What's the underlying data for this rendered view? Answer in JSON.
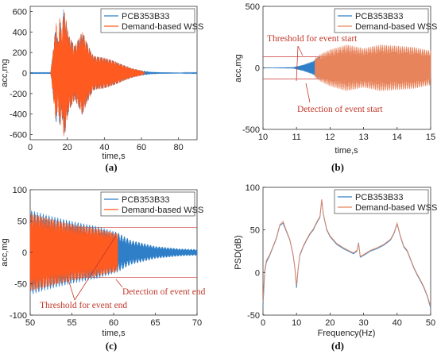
{
  "chart_data": [
    {
      "type": "line",
      "panel_label": "(a)",
      "xlabel": "time,s",
      "ylabel": "acc,mg",
      "xlim": [
        0,
        90
      ],
      "ylim": [
        -650,
        650
      ],
      "xticks": [
        0,
        20,
        40,
        60,
        80
      ],
      "yticks": [
        -600,
        -400,
        -200,
        0,
        200,
        400,
        600
      ],
      "grid": false,
      "legend": "top-right",
      "series": [
        {
          "name": "PCB353B33",
          "color": "#2f7fc8",
          "envelope": {
            "x": [
              0,
              11,
              12,
              14,
              15,
              16,
              17,
              18,
              19,
              20,
              21,
              22,
              24,
              26,
              27,
              28,
              29,
              30,
              32,
              34,
              36,
              40,
              45,
              50,
              55,
              60,
              65,
              70,
              80,
              90
            ],
            "amp": [
              3,
              3,
              160,
              500,
              290,
              560,
              380,
              620,
              570,
              440,
              360,
              330,
              260,
              330,
              360,
              410,
              370,
              320,
              240,
              170,
              160,
              150,
              120,
              80,
              45,
              25,
              12,
              8,
              5,
              3
            ]
          }
        },
        {
          "name": "Demand-based WSS",
          "color": "#ff5a1f",
          "envelope": {
            "x": [
              11,
              12,
              14,
              15,
              16,
              17,
              18,
              19,
              20,
              21,
              22,
              24,
              26,
              27,
              28,
              29,
              30,
              32,
              34,
              36,
              40,
              45,
              50,
              55,
              60,
              62
            ],
            "amp": [
              0,
              160,
              500,
              290,
              560,
              380,
              620,
              570,
              440,
              360,
              330,
              260,
              330,
              360,
              410,
              370,
              320,
              240,
              170,
              160,
              150,
              120,
              80,
              45,
              25,
              0
            ]
          }
        }
      ]
    },
    {
      "type": "line",
      "panel_label": "(b)",
      "xlabel": "time,s",
      "ylabel": "acc,mg",
      "xlim": [
        10,
        15
      ],
      "ylim": [
        -500,
        500
      ],
      "xticks": [
        10,
        11,
        12,
        13,
        14,
        15
      ],
      "yticks": [
        -500,
        0,
        500
      ],
      "grid": false,
      "legend": "top-right",
      "threshold": 90,
      "annotations": [
        "Threshold for event start",
        "Detection of event start"
      ],
      "series": [
        {
          "name": "PCB353B33",
          "color": "#2f7fc8",
          "envelope": {
            "x": [
              10,
              10.9,
              11.2,
              11.5,
              11.7
            ],
            "amp": [
              2,
              5,
              25,
              55,
              100
            ]
          }
        },
        {
          "name": "Demand-based WSS",
          "color": "#e8845c",
          "envelope": {
            "x": [
              11.55,
              11.7,
              12,
              12.5,
              13,
              13.5,
              14,
              14.5,
              15
            ],
            "amp": [
              80,
              110,
              150,
              190,
              160,
              190,
              180,
              170,
              140
            ]
          }
        }
      ]
    },
    {
      "type": "line",
      "panel_label": "(c)",
      "xlabel": "time,s",
      "ylabel": "acc,mg",
      "xlim": [
        50,
        70
      ],
      "ylim": [
        -100,
        100
      ],
      "xticks": [
        50,
        55,
        60,
        65,
        70
      ],
      "yticks": [
        -100,
        -50,
        0,
        50,
        100
      ],
      "grid": false,
      "legend": "top-right",
      "threshold": 40,
      "annotations": [
        "Threshold for event end",
        "Detection of event end"
      ],
      "series": [
        {
          "name": "PCB353B33",
          "color": "#2f7fc8",
          "envelope": {
            "x": [
              50,
              52,
              55,
              58,
              60.5,
              62,
              65,
              68,
              70
            ],
            "amp": [
              68,
              60,
              50,
              42,
              32,
              20,
              10,
              6,
              5
            ]
          }
        },
        {
          "name": "Demand-based WSS",
          "color": "#ff5a1f",
          "envelope": {
            "x": [
              50,
              52,
              55,
              58,
              60.5
            ],
            "amp": [
              62,
              55,
              45,
              38,
              30
            ]
          }
        }
      ]
    },
    {
      "type": "line",
      "panel_label": "(d)",
      "xlabel": "Frequency(Hz)",
      "ylabel": "PSD(dB)",
      "xlim": [
        0,
        50
      ],
      "ylim": [
        -50,
        100
      ],
      "xticks": [
        0,
        10,
        20,
        30,
        40,
        50
      ],
      "yticks": [
        -50,
        0,
        50,
        100
      ],
      "grid": false,
      "legend": "top-right",
      "series": [
        {
          "name": "PCB353B33",
          "color": "#2f7fc8",
          "x": [
            0,
            0.5,
            1,
            2,
            3,
            4,
            5,
            6,
            7,
            8,
            9,
            9.5,
            10,
            10.5,
            11,
            12,
            13,
            14,
            15,
            16,
            17,
            17.5,
            18,
            19,
            20,
            22,
            24,
            26,
            27,
            28,
            28.5,
            29,
            30,
            32,
            34,
            36,
            38,
            39,
            40,
            41,
            42,
            43,
            44,
            45,
            46,
            47,
            48,
            49,
            50
          ],
          "y": [
            -40,
            0,
            12,
            20,
            30,
            40,
            55,
            58,
            48,
            38,
            20,
            5,
            -18,
            5,
            20,
            30,
            38,
            45,
            50,
            58,
            65,
            85,
            68,
            50,
            42,
            33,
            28,
            24,
            22,
            25,
            35,
            18,
            20,
            25,
            28,
            32,
            38,
            45,
            57,
            42,
            30,
            25,
            15,
            5,
            -3,
            -10,
            -18,
            -28,
            -42
          ]
        },
        {
          "name": "Demand-based WSS",
          "color": "#e8845c",
          "x": [
            0,
            0.5,
            1,
            2,
            3,
            4,
            5,
            6,
            7,
            8,
            9,
            9.5,
            10,
            10.5,
            11,
            12,
            13,
            14,
            15,
            16,
            17,
            17.5,
            18,
            19,
            20,
            22,
            24,
            26,
            27,
            28,
            28.5,
            29,
            30,
            32,
            34,
            36,
            38,
            39,
            40,
            41,
            42,
            43,
            44,
            45,
            46,
            47,
            48,
            49,
            50
          ],
          "y": [
            -35,
            2,
            14,
            21,
            31,
            41,
            56,
            60,
            49,
            39,
            21,
            6,
            -15,
            6,
            21,
            31,
            39,
            46,
            51,
            59,
            66,
            86,
            69,
            51,
            43,
            34,
            29,
            25,
            23,
            26,
            34,
            19,
            21,
            26,
            29,
            33,
            39,
            46,
            58,
            43,
            31,
            26,
            16,
            6,
            -2,
            -9,
            -17,
            -27,
            -40
          ]
        }
      ]
    }
  ]
}
